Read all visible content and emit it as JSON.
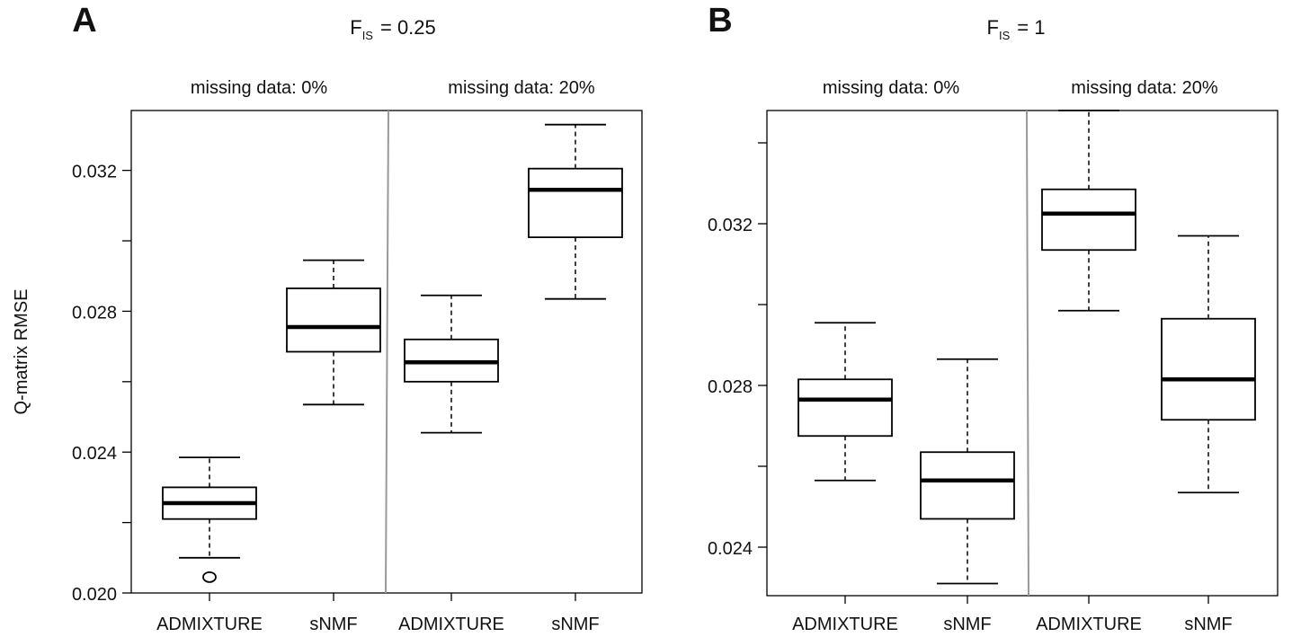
{
  "chart_data": [
    {
      "type": "box",
      "panel_label": "A",
      "title_main": "F",
      "title_sub": "IS",
      "title_value": "= 0.25",
      "ylabel": "Q-matrix RMSE",
      "ylim": [
        0.02,
        0.0337
      ],
      "yticks": [
        "0.020",
        "0.024",
        "0.028",
        "0.032"
      ],
      "groups": [
        {
          "label": "missing data: 0%",
          "boxes": [
            {
              "name": "ADMIXTURE",
              "whisker_low": 0.021,
              "q1": 0.0221,
              "median": 0.02255,
              "q3": 0.023,
              "whisker_high": 0.02385,
              "outliers": [
                0.02045
              ]
            },
            {
              "name": "sNMF",
              "whisker_low": 0.02535,
              "q1": 0.02685,
              "median": 0.02755,
              "q3": 0.02865,
              "whisker_high": 0.02945,
              "outliers": []
            }
          ]
        },
        {
          "label": "missing data: 20%",
          "boxes": [
            {
              "name": "ADMIXTURE",
              "whisker_low": 0.02455,
              "q1": 0.026,
              "median": 0.02655,
              "q3": 0.0272,
              "whisker_high": 0.02845,
              "outliers": []
            },
            {
              "name": "sNMF",
              "whisker_low": 0.02835,
              "q1": 0.0301,
              "median": 0.03145,
              "q3": 0.03205,
              "whisker_high": 0.0333,
              "outliers": []
            }
          ]
        }
      ]
    },
    {
      "type": "box",
      "panel_label": "B",
      "title_main": "F",
      "title_sub": "IS",
      "title_value": "= 1",
      "ylabel": "",
      "ylim": [
        0.0228,
        0.0348
      ],
      "yticks": [
        "0.024",
        "0.028",
        "0.032"
      ],
      "groups": [
        {
          "label": "missing data: 0%",
          "boxes": [
            {
              "name": "ADMIXTURE",
              "whisker_low": 0.02565,
              "q1": 0.02675,
              "median": 0.02765,
              "q3": 0.02815,
              "whisker_high": 0.02955,
              "outliers": []
            },
            {
              "name": "sNMF",
              "whisker_low": 0.0231,
              "q1": 0.0247,
              "median": 0.02565,
              "q3": 0.02635,
              "whisker_high": 0.02865,
              "outliers": []
            }
          ]
        },
        {
          "label": "missing data: 20%",
          "boxes": [
            {
              "name": "ADMIXTURE",
              "whisker_low": 0.02985,
              "q1": 0.03135,
              "median": 0.03225,
              "q3": 0.03285,
              "whisker_high": 0.0348,
              "outliers": []
            },
            {
              "name": "sNMF",
              "whisker_low": 0.02535,
              "q1": 0.02715,
              "median": 0.02815,
              "q3": 0.02965,
              "whisker_high": 0.0317,
              "outliers": []
            }
          ]
        }
      ]
    }
  ]
}
